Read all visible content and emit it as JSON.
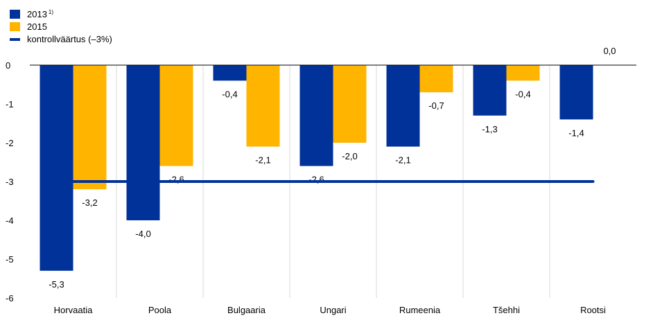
{
  "colors": {
    "s2013": "#003299",
    "s2015": "#FFB400",
    "reference": "#003299",
    "grid": "#d9d9d9"
  },
  "legend": {
    "s2013_label": "2013",
    "s2013_note": "1)",
    "s2015_label": "2015",
    "reference_label": "kontrollväärtus (–3%)"
  },
  "chart_data": {
    "type": "bar",
    "categories": [
      "Horvaatia",
      "Poola",
      "Bulgaaria",
      "Ungari",
      "Rumeenia",
      "Tšehhi",
      "Rootsi"
    ],
    "series": [
      {
        "name": "2013",
        "values": [
          -5.3,
          -4.0,
          -0.4,
          -2.6,
          -2.1,
          -1.3,
          -1.4
        ],
        "labels": [
          "-5,3",
          "-4,0",
          "-0,4",
          "-2,6",
          "-2,1",
          "-1,3",
          "-1,4"
        ]
      },
      {
        "name": "2015",
        "values": [
          -3.2,
          -2.6,
          -2.1,
          -2.0,
          -0.7,
          -0.4,
          0.0
        ],
        "labels": [
          "-3,2",
          "-2,6",
          "-2,1",
          "-2,0",
          "-0,7",
          "-0,4",
          "0,0"
        ]
      }
    ],
    "reference": {
      "name": "kontrollväärtus (–3%)",
      "value": -3
    },
    "ylim": [
      -6,
      0
    ],
    "yticks": [
      0,
      -1,
      -2,
      -3,
      -4,
      -5,
      -6
    ],
    "ytick_labels": [
      "0",
      "-1",
      "-2",
      "-3",
      "-4",
      "-5",
      "-6"
    ],
    "grid": "vertical category separators",
    "legend_position": "top-left"
  }
}
